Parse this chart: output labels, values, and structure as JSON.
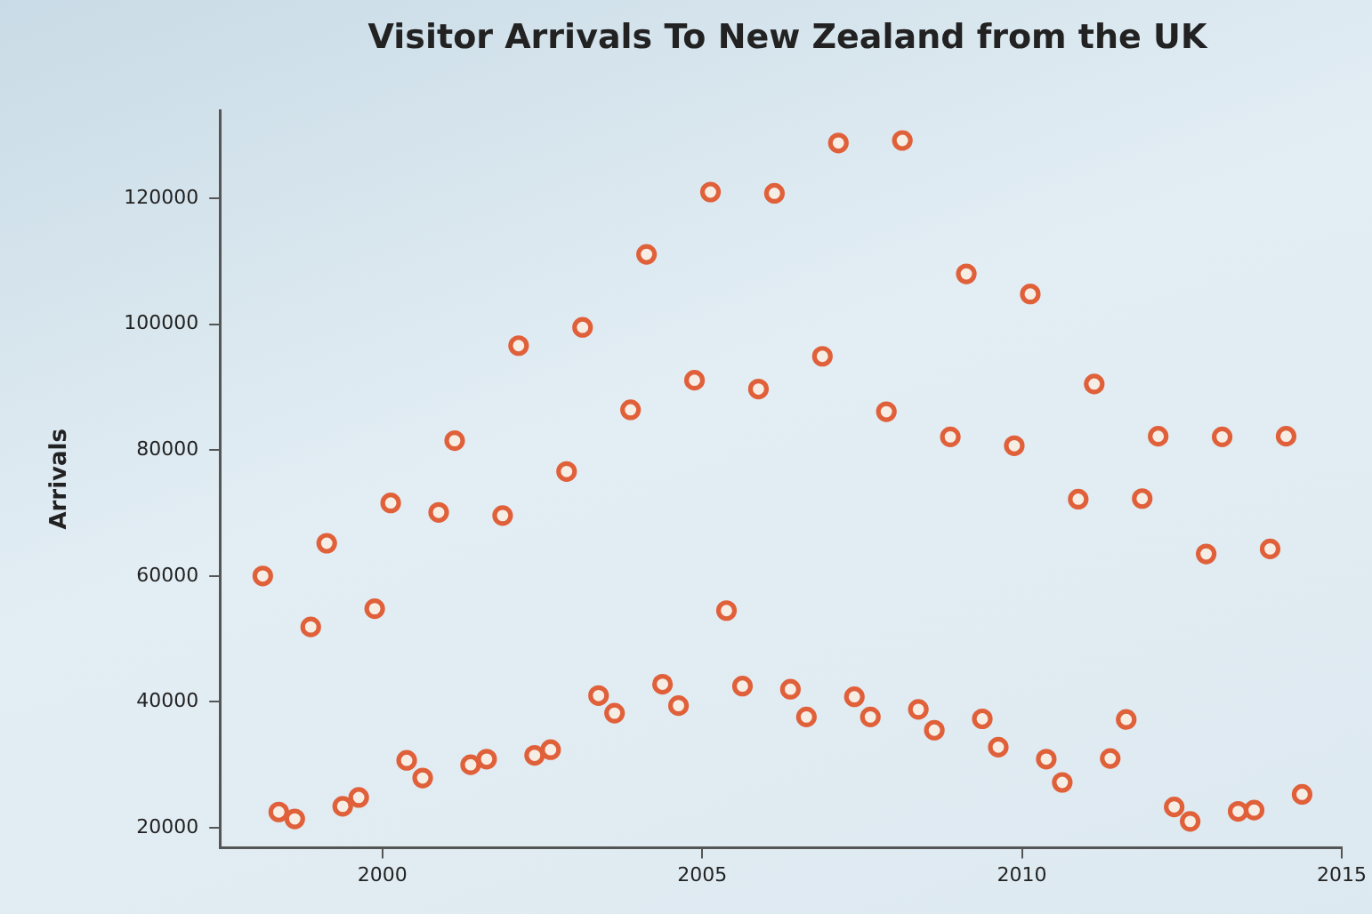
{
  "chart_data": {
    "type": "scatter",
    "title": "Visitor Arrivals To New Zealand from the UK",
    "ylabel": "Arrivals",
    "x": [
      1998.13,
      1998.38,
      1998.63,
      1998.88,
      1999.13,
      1999.38,
      1999.63,
      1999.88,
      2000.13,
      2000.38,
      2000.63,
      2000.88,
      2001.13,
      2001.38,
      2001.63,
      2001.88,
      2002.13,
      2002.38,
      2002.63,
      2002.88,
      2003.13,
      2003.38,
      2003.63,
      2003.88,
      2004.13,
      2004.38,
      2004.63,
      2004.88,
      2005.13,
      2005.38,
      2005.63,
      2005.88,
      2006.13,
      2006.38,
      2006.63,
      2006.88,
      2007.13,
      2007.38,
      2007.63,
      2007.88,
      2008.13,
      2008.38,
      2008.63,
      2008.88,
      2009.13,
      2009.38,
      2009.63,
      2009.88,
      2010.13,
      2010.38,
      2010.63,
      2010.88,
      2011.13,
      2011.38,
      2011.63,
      2011.88,
      2012.13,
      2012.38,
      2012.63,
      2012.88,
      2013.13,
      2013.38,
      2013.63,
      2013.88,
      2014.13,
      2014.38
    ],
    "series": [
      {
        "color": "#e0603a",
        "values": [
          60000,
          22500,
          21400,
          51900,
          65200,
          23400,
          24800,
          54800,
          71600,
          30700,
          27900,
          70100,
          81500,
          30000,
          30900,
          69600,
          96600,
          31500,
          32400,
          76600,
          99500,
          41000,
          38200,
          86400,
          111100,
          42800,
          39400,
          91100,
          121000,
          54500,
          42500,
          89700,
          120800,
          42000,
          37600,
          94900,
          128800,
          40800,
          37600,
          86100,
          129200,
          38800,
          35500,
          82100,
          108000,
          37300,
          32800,
          80700,
          104800,
          30900,
          27200,
          72200,
          90500,
          31000,
          37200,
          72300,
          82200,
          23300,
          21000,
          63500,
          82100,
          22600,
          22800,
          64300,
          82200,
          25300
        ]
      }
    ],
    "xlim": [
      1997.46,
      2015
    ],
    "xticks": [
      2000,
      2005,
      2010,
      2015
    ],
    "ylim": [
      16800,
      134000
    ],
    "yticks": [
      20000,
      40000,
      60000,
      80000,
      100000,
      120000
    ],
    "grid": false,
    "legend": false,
    "marker": "circle"
  }
}
